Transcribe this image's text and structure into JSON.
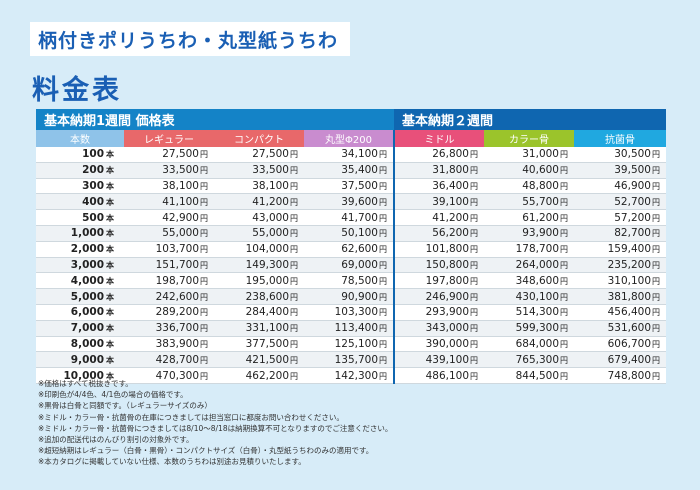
{
  "header": {
    "title": "柄付きポリうちわ・丸型紙うちわ",
    "heading": "料金表"
  },
  "table": {
    "group_1": "基本納期1週間 価格表",
    "group_2": "基本納期２週間",
    "columns": [
      {
        "label": "本数",
        "color": "#8fc3e9"
      },
      {
        "label": "レギュラー",
        "color": "#e8686a"
      },
      {
        "label": "コンパクト",
        "color": "#e8686a"
      },
      {
        "label": "丸型Φ200",
        "color": "#c98ccf"
      },
      {
        "label": "ミドル",
        "color": "#e8507a"
      },
      {
        "label": "カラー骨",
        "color": "#9bc42b"
      },
      {
        "label": "抗菌骨",
        "color": "#20a8e0"
      }
    ],
    "qty_unit": "本",
    "yen_unit": "円",
    "rows": [
      {
        "qty": "100",
        "prices": [
          "27,500",
          "27,500",
          "34,100",
          "26,800",
          "31,000",
          "30,500"
        ]
      },
      {
        "qty": "200",
        "prices": [
          "33,500",
          "33,500",
          "35,400",
          "31,800",
          "40,600",
          "39,500"
        ]
      },
      {
        "qty": "300",
        "prices": [
          "38,100",
          "38,100",
          "37,500",
          "36,400",
          "48,800",
          "46,900"
        ]
      },
      {
        "qty": "400",
        "prices": [
          "41,100",
          "41,200",
          "39,600",
          "39,100",
          "55,700",
          "52,700"
        ]
      },
      {
        "qty": "500",
        "prices": [
          "42,900",
          "43,000",
          "41,700",
          "41,200",
          "61,200",
          "57,200"
        ]
      },
      {
        "qty": "1,000",
        "prices": [
          "55,000",
          "55,000",
          "50,100",
          "56,200",
          "93,900",
          "82,700"
        ]
      },
      {
        "qty": "2,000",
        "prices": [
          "103,700",
          "104,000",
          "62,600",
          "101,800",
          "178,700",
          "159,400"
        ]
      },
      {
        "qty": "3,000",
        "prices": [
          "151,700",
          "149,300",
          "69,000",
          "150,800",
          "264,000",
          "235,200"
        ]
      },
      {
        "qty": "4,000",
        "prices": [
          "198,700",
          "195,000",
          "78,500",
          "197,800",
          "348,600",
          "310,100"
        ]
      },
      {
        "qty": "5,000",
        "prices": [
          "242,600",
          "238,600",
          "90,900",
          "246,900",
          "430,100",
          "381,800"
        ]
      },
      {
        "qty": "6,000",
        "prices": [
          "289,200",
          "284,400",
          "103,300",
          "293,900",
          "514,300",
          "456,400"
        ]
      },
      {
        "qty": "7,000",
        "prices": [
          "336,700",
          "331,100",
          "113,400",
          "343,000",
          "599,300",
          "531,600"
        ]
      },
      {
        "qty": "8,000",
        "prices": [
          "383,900",
          "377,500",
          "125,100",
          "390,000",
          "684,000",
          "606,700"
        ]
      },
      {
        "qty": "9,000",
        "prices": [
          "428,700",
          "421,500",
          "135,700",
          "439,100",
          "765,300",
          "679,400"
        ]
      },
      {
        "qty": "10,000",
        "prices": [
          "470,300",
          "462,200",
          "142,300",
          "486,100",
          "844,500",
          "748,800"
        ]
      }
    ]
  },
  "notes": [
    "※価格はすべて税抜きです。",
    "※印刷色が4/4色、4/1色の場合の価格です。",
    "※黒骨は白骨と同額です。（レギュラーサイズのみ）",
    "※ミドル・カラー骨・抗菌骨の在庫につきましては担当窓口に都度お問い合わせください。",
    "※ミドル・カラー骨・抗菌骨につきましては8/10〜8/18は納期換算不可となりますのでご注意ください。",
    "※追加の配送代はのんびり割引の対象外です。",
    "※超短納期はレギュラー（白骨・黒骨）・コンパクトサイズ（白骨）・丸型紙うちわのみの適用です。",
    "※本カタログに掲載していない仕様、本数のうちわは別途お見積りいたします。"
  ]
}
